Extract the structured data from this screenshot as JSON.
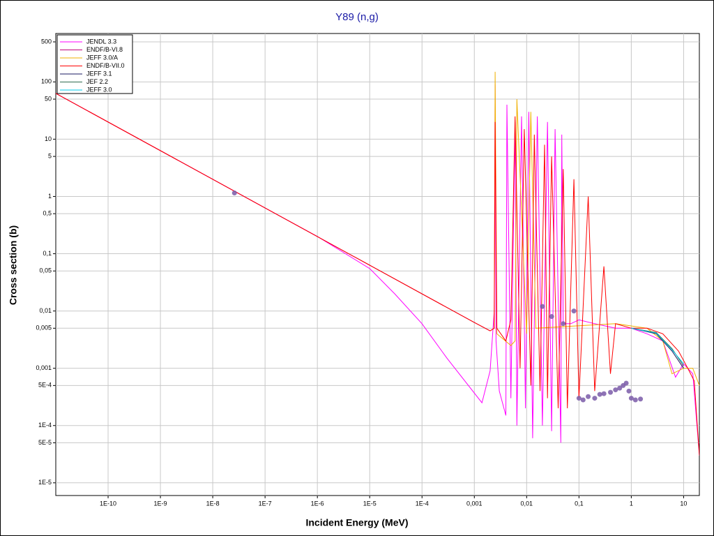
{
  "chart_data": {
    "type": "line",
    "title": "Y89 (n,g)",
    "x_label": "Incident Energy (MeV)",
    "y_label": "Cross section (b)",
    "xscale": "log",
    "yscale": "log",
    "grid": true,
    "legend": "upper left",
    "xlim": [
      1e-11,
      20
    ],
    "ylim": [
      6e-06,
      700
    ],
    "xticks": [
      {
        "value": 1e-10,
        "label": "1E-10"
      },
      {
        "value": 1e-09,
        "label": "1E-9"
      },
      {
        "value": 1e-08,
        "label": "1E-8"
      },
      {
        "value": 1e-07,
        "label": "1E-7"
      },
      {
        "value": 1e-06,
        "label": "1E-6"
      },
      {
        "value": 1e-05,
        "label": "1E-5"
      },
      {
        "value": 0.0001,
        "label": "1E-4"
      },
      {
        "value": 0.001,
        "label": "0,001"
      },
      {
        "value": 0.01,
        "label": "0,01"
      },
      {
        "value": 0.1,
        "label": "0,1"
      },
      1,
      10
    ],
    "yticks": [
      500,
      100,
      50,
      10,
      5,
      1,
      {
        "value": 0.5,
        "label": "0,5"
      },
      {
        "value": 0.1,
        "label": "0,1"
      },
      {
        "value": 0.05,
        "label": "0,05"
      },
      {
        "value": 0.01,
        "label": "0,01"
      },
      {
        "value": 0.005,
        "label": "0,005"
      },
      {
        "value": 0.001,
        "label": "0,001"
      },
      {
        "value": 0.0005,
        "label": "5E-4"
      },
      {
        "value": 0.0001,
        "label": "1E-4"
      },
      {
        "value": 5e-05,
        "label": "5E-5"
      },
      {
        "value": 1e-05,
        "label": "1E-5"
      }
    ],
    "series": [
      {
        "name": "JENDL 3.3",
        "color": "#ff00ff",
        "x": [
          1e-11,
          1e-09,
          1e-07,
          1e-06,
          1e-05,
          3e-05,
          0.0001,
          0.0003,
          0.0014,
          0.002,
          0.0024,
          0.0025,
          0.0026,
          0.003,
          0.004,
          0.0042,
          0.005,
          0.006,
          0.0065,
          0.008,
          0.0095,
          0.011,
          0.013,
          0.016,
          0.02,
          0.025,
          0.03,
          0.035,
          0.045,
          0.047,
          0.05,
          0.07,
          0.1,
          0.2,
          0.5,
          1,
          2,
          4,
          7,
          10,
          15,
          20
        ],
        "values": [
          63,
          6.3,
          0.63,
          0.2,
          0.055,
          0.02,
          0.006,
          0.0015,
          0.00025,
          0.0009,
          0.01,
          90,
          0.003,
          0.0004,
          0.00015,
          40,
          0.0003,
          20,
          0.0001,
          25,
          0.0002,
          30,
          6e-05,
          25,
          0.0001,
          20,
          8e-05,
          15,
          5e-05,
          12,
          0.006,
          0.006,
          0.007,
          0.006,
          0.005,
          0.005,
          0.004,
          0.003,
          0.0007,
          0.0012,
          0.0008,
          3e-05
        ]
      },
      {
        "name": "ENDF/B-VI.8",
        "color": "#c0007a",
        "x": [
          1e-11,
          1e-07,
          1e-05,
          0.001,
          0.002
        ],
        "values": [
          63,
          0.63,
          0.063,
          0.0063,
          0.0045
        ]
      },
      {
        "name": "JEFF 3.0/A",
        "color": "#f0b000",
        "x": [
          0.002,
          0.0024,
          0.0025,
          0.0027,
          0.005,
          0.006,
          0.0065,
          0.01,
          0.012,
          0.015,
          0.5,
          2,
          4,
          6,
          10,
          15,
          20
        ],
        "values": [
          0.0045,
          0.005,
          150,
          0.004,
          0.0025,
          0.003,
          50,
          0.004,
          30,
          0.005,
          0.006,
          0.005,
          0.003,
          0.0008,
          0.001,
          0.001,
          0.0005
        ]
      },
      {
        "name": "ENDF/B-VII.0",
        "color": "#ff0000",
        "x": [
          1e-11,
          1e-07,
          1e-05,
          0.001,
          0.002,
          0.0024,
          0.0025,
          0.0027,
          0.004,
          0.005,
          0.006,
          0.0075,
          0.009,
          0.012,
          0.014,
          0.018,
          0.022,
          0.025,
          0.03,
          0.04,
          0.05,
          0.06,
          0.08,
          0.1,
          0.15,
          0.2,
          0.3,
          0.4,
          0.5,
          1,
          2,
          4,
          8,
          12,
          16,
          20
        ],
        "values": [
          63,
          0.63,
          0.063,
          0.0063,
          0.0045,
          0.005,
          20,
          0.005,
          0.003,
          0.007,
          25,
          0.001,
          15,
          0.0005,
          12,
          0.0004,
          8,
          0.0003,
          5,
          0.0002,
          3,
          0.0002,
          2,
          0.0003,
          1,
          0.0004,
          0.06,
          0.0008,
          0.006,
          0.005,
          0.005,
          0.004,
          0.002,
          0.001,
          0.0006,
          3e-05
        ]
      },
      {
        "name": "JEFF 3.1",
        "color": "#1a1a60",
        "x": [
          1,
          3,
          6,
          10
        ],
        "values": [
          0.005,
          0.004,
          0.002,
          0.001
        ]
      },
      {
        "name": "JEF 2.2",
        "color": "#2e6b4f",
        "x": [
          1,
          3,
          6,
          10
        ],
        "values": [
          0.005,
          0.0042,
          0.0022,
          0.0011
        ]
      },
      {
        "name": "JEFF 3.0",
        "color": "#00c8e8",
        "x": [
          1,
          3,
          6,
          10
        ],
        "values": [
          0.005,
          0.0041,
          0.0021,
          0.0012
        ]
      }
    ],
    "markers": {
      "color": "#7a5aa8",
      "x": [
        2.6e-08,
        0.1,
        0.12,
        0.15,
        0.2,
        0.25,
        0.3,
        0.4,
        0.5,
        0.6,
        0.7,
        0.8,
        0.9,
        1.0,
        1.2,
        1.5,
        0.02,
        0.03,
        0.05,
        0.08
      ],
      "y": [
        1.15,
        0.0003,
        0.00028,
        0.00032,
        0.0003,
        0.00035,
        0.00036,
        0.00038,
        0.00042,
        0.00045,
        0.0005,
        0.00055,
        0.0004,
        0.0003,
        0.00028,
        0.00029,
        0.012,
        0.008,
        0.006,
        0.01
      ]
    }
  }
}
